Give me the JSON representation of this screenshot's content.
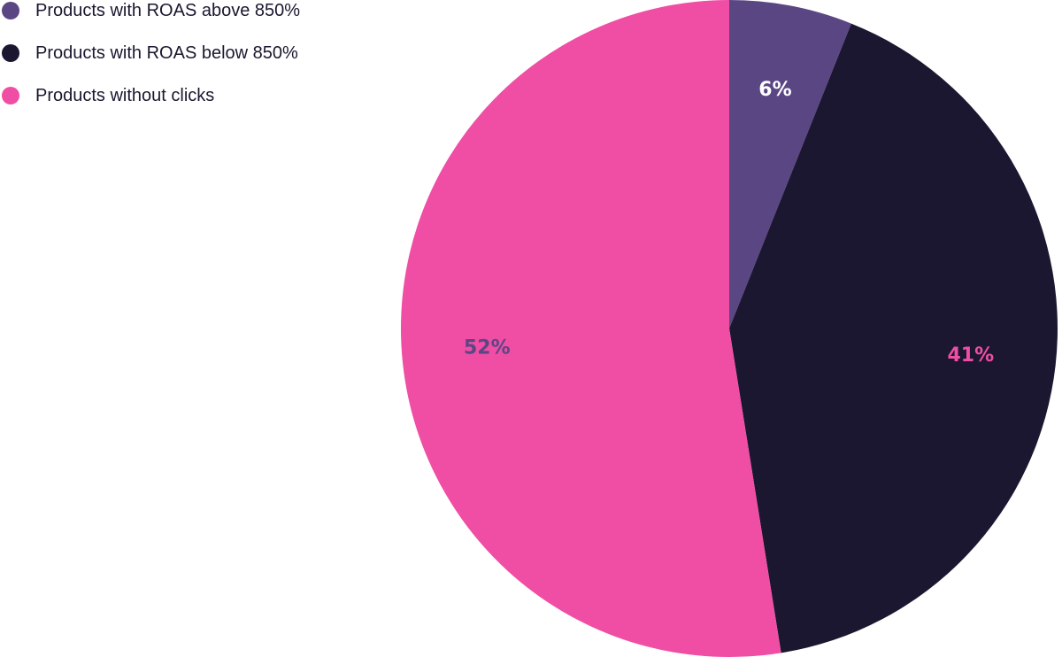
{
  "chart_data": {
    "type": "pie",
    "legend_position": "top-left",
    "slices": [
      {
        "label": "Products with ROAS above 850%",
        "value": 6,
        "value_label": "6%",
        "color": "#5b4684",
        "label_color": "#ffffff"
      },
      {
        "label": "Products with ROAS below 850%",
        "value": 41,
        "value_label": "41%",
        "color": "#1b1730",
        "label_color": "#ef4ea4"
      },
      {
        "label": "Products without clicks",
        "value": 52,
        "value_label": "52%",
        "color": "#ef4ea4",
        "label_color": "#5b4684"
      }
    ]
  }
}
